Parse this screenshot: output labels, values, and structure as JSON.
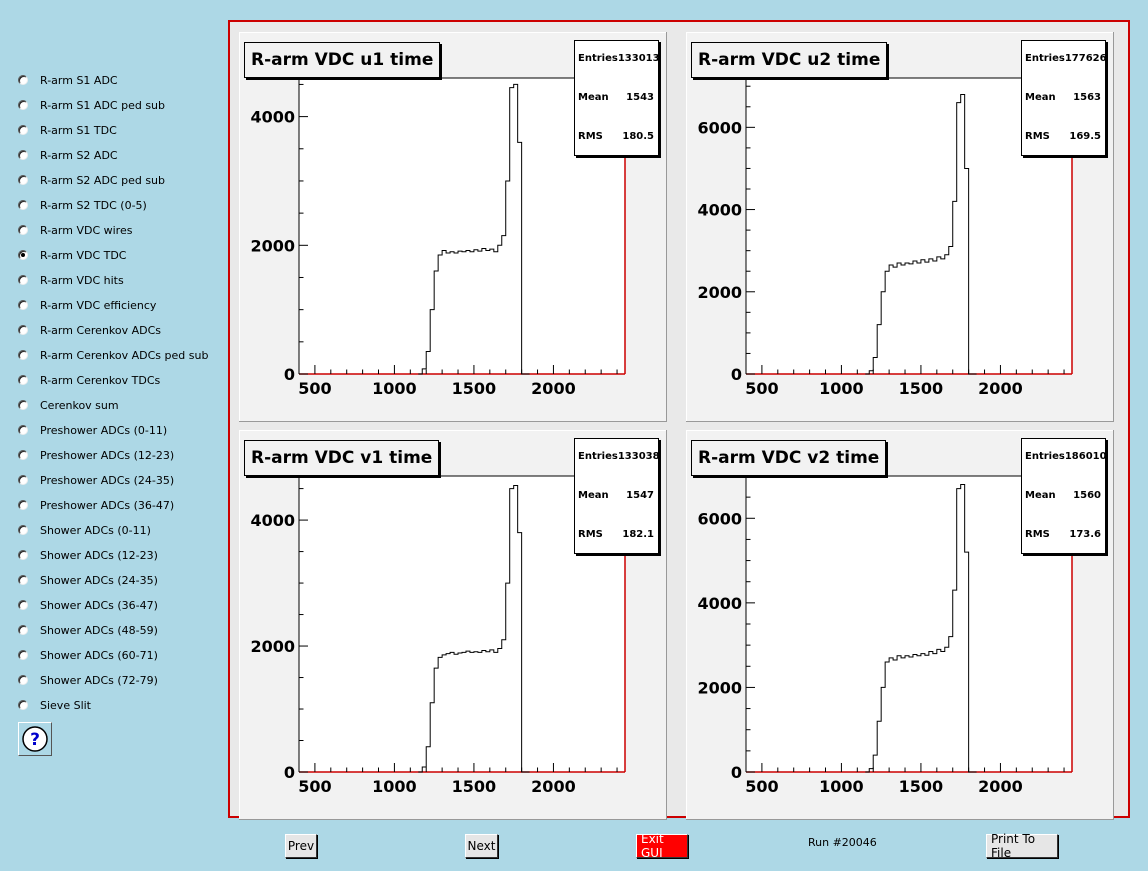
{
  "sidebar": {
    "items": [
      {
        "label": "R-arm S1 ADC",
        "checked": false
      },
      {
        "label": "R-arm S1 ADC ped sub",
        "checked": false
      },
      {
        "label": "R-arm S1 TDC",
        "checked": false
      },
      {
        "label": "R-arm S2 ADC",
        "checked": false
      },
      {
        "label": "R-arm S2 ADC ped sub",
        "checked": false
      },
      {
        "label": "R-arm S2 TDC (0-5)",
        "checked": false
      },
      {
        "label": "R-arm VDC wires",
        "checked": false
      },
      {
        "label": "R-arm VDC TDC",
        "checked": true
      },
      {
        "label": "R-arm VDC hits",
        "checked": false
      },
      {
        "label": "R-arm VDC efficiency",
        "checked": false
      },
      {
        "label": "R-arm Cerenkov ADCs",
        "checked": false
      },
      {
        "label": "R-arm Cerenkov ADCs ped sub",
        "checked": false
      },
      {
        "label": "R-arm Cerenkov TDCs",
        "checked": false
      },
      {
        "label": "Cerenkov sum",
        "checked": false
      },
      {
        "label": "Preshower ADCs (0-11)",
        "checked": false
      },
      {
        "label": "Preshower ADCs (12-23)",
        "checked": false
      },
      {
        "label": "Preshower ADCs (24-35)",
        "checked": false
      },
      {
        "label": "Preshower ADCs (36-47)",
        "checked": false
      },
      {
        "label": "Shower ADCs (0-11)",
        "checked": false
      },
      {
        "label": "Shower ADCs (12-23)",
        "checked": false
      },
      {
        "label": "Shower ADCs (24-35)",
        "checked": false
      },
      {
        "label": "Shower ADCs (36-47)",
        "checked": false
      },
      {
        "label": "Shower ADCs (48-59)",
        "checked": false
      },
      {
        "label": "Shower ADCs (60-71)",
        "checked": false
      },
      {
        "label": "Shower ADCs (72-79)",
        "checked": false
      },
      {
        "label": "Sieve Slit",
        "checked": false
      }
    ],
    "help_icon": "question-mark-icon"
  },
  "buttons": {
    "prev": "Prev",
    "next": "Next",
    "exit": "Exit GUI",
    "print": "Print To File"
  },
  "run_label": "Run #20046",
  "colors": {
    "background": "#add8e6",
    "canvas_border": "#cc0000",
    "exit_button": "#ff0000"
  },
  "stat_labels": {
    "entries": "Entries",
    "mean": "Mean",
    "rms": "RMS"
  },
  "chart_data": [
    {
      "type": "line",
      "title": "R-arm VDC u1 time",
      "stats": {
        "entries": "133013",
        "mean": "1543",
        "rms": "180.5"
      },
      "xlim": [
        400,
        2450
      ],
      "ylim": [
        0,
        4600
      ],
      "xticks": [
        500,
        1000,
        1500,
        2000
      ],
      "yticks": [
        0,
        2000,
        4000
      ],
      "x": [
        1150,
        1175,
        1200,
        1225,
        1250,
        1275,
        1300,
        1325,
        1350,
        1375,
        1400,
        1425,
        1450,
        1475,
        1500,
        1525,
        1550,
        1575,
        1600,
        1625,
        1650,
        1675,
        1700,
        1725,
        1750,
        1775,
        1800,
        1825
      ],
      "y": [
        0,
        80,
        350,
        1000,
        1600,
        1850,
        1920,
        1880,
        1900,
        1880,
        1910,
        1900,
        1920,
        1900,
        1930,
        1910,
        1950,
        1920,
        1940,
        1900,
        2000,
        2150,
        3000,
        4450,
        4500,
        3600,
        0,
        0
      ]
    },
    {
      "type": "line",
      "title": "R-arm VDC u2 time",
      "stats": {
        "entries": "177626",
        "mean": "1563",
        "rms": "169.5"
      },
      "xlim": [
        400,
        2450
      ],
      "ylim": [
        0,
        7200
      ],
      "xticks": [
        500,
        1000,
        1500,
        2000
      ],
      "yticks": [
        0,
        2000,
        4000,
        6000
      ],
      "x": [
        1150,
        1175,
        1200,
        1225,
        1250,
        1275,
        1300,
        1325,
        1350,
        1375,
        1400,
        1425,
        1450,
        1475,
        1500,
        1525,
        1550,
        1575,
        1600,
        1625,
        1650,
        1675,
        1700,
        1725,
        1750,
        1775,
        1800,
        1825
      ],
      "y": [
        0,
        80,
        400,
        1200,
        2000,
        2500,
        2650,
        2600,
        2700,
        2650,
        2700,
        2680,
        2750,
        2700,
        2780,
        2720,
        2800,
        2750,
        2850,
        2800,
        2900,
        3100,
        4200,
        6600,
        6800,
        5000,
        0,
        0
      ]
    },
    {
      "type": "line",
      "title": "R-arm VDC v1 time",
      "stats": {
        "entries": "133038",
        "mean": "1547",
        "rms": "182.1"
      },
      "xlim": [
        400,
        2450
      ],
      "ylim": [
        0,
        4700
      ],
      "xticks": [
        500,
        1000,
        1500,
        2000
      ],
      "yticks": [
        0,
        2000,
        4000
      ],
      "x": [
        1150,
        1175,
        1200,
        1225,
        1250,
        1275,
        1300,
        1325,
        1350,
        1375,
        1400,
        1425,
        1450,
        1475,
        1500,
        1525,
        1550,
        1575,
        1600,
        1625,
        1650,
        1675,
        1700,
        1725,
        1750,
        1775,
        1800,
        1825
      ],
      "y": [
        0,
        80,
        400,
        1100,
        1650,
        1820,
        1860,
        1880,
        1900,
        1870,
        1890,
        1900,
        1920,
        1900,
        1910,
        1900,
        1930,
        1910,
        1940,
        1900,
        1960,
        2100,
        3000,
        4500,
        4550,
        3800,
        0,
        0
      ]
    },
    {
      "type": "line",
      "title": "R-arm VDC v2 time",
      "stats": {
        "entries": "186010",
        "mean": "1560",
        "rms": "173.6"
      },
      "xlim": [
        400,
        2450
      ],
      "ylim": [
        0,
        7000
      ],
      "xticks": [
        500,
        1000,
        1500,
        2000
      ],
      "yticks": [
        0,
        2000,
        4000,
        6000
      ],
      "x": [
        1150,
        1175,
        1200,
        1225,
        1250,
        1275,
        1300,
        1325,
        1350,
        1375,
        1400,
        1425,
        1450,
        1475,
        1500,
        1525,
        1550,
        1575,
        1600,
        1625,
        1650,
        1675,
        1700,
        1725,
        1750,
        1775,
        1800,
        1825
      ],
      "y": [
        0,
        80,
        400,
        1200,
        2000,
        2600,
        2700,
        2650,
        2750,
        2700,
        2750,
        2720,
        2780,
        2750,
        2800,
        2760,
        2850,
        2800,
        2900,
        2850,
        2950,
        3200,
        4300,
        6700,
        6800,
        5200,
        0,
        0
      ]
    }
  ]
}
